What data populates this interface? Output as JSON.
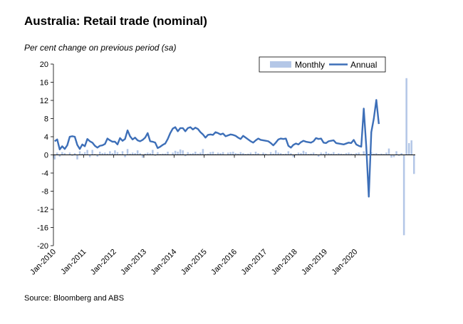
{
  "header": {
    "title": "Australia: Retail trade (nominal)",
    "subtitle": "Per cent change on previous period (sa)",
    "source": "Source: Bloomberg and ABS"
  },
  "colors": {
    "monthly": "#b4c7e7",
    "annual": "#3d6fb8"
  },
  "chart_data": {
    "type": "bar+line",
    "ylim": [
      -20,
      20
    ],
    "yticks": [
      -20,
      -16,
      -12,
      -8,
      -4,
      0,
      4,
      8,
      12,
      16,
      20
    ],
    "xticks": [
      "Jan-2010",
      "Jan-2011",
      "Jan-2012",
      "Jan-2013",
      "Jan-2014",
      "Jan-2015",
      "Jan-2016",
      "Jan-2017",
      "Jan-2018",
      "Jan-2019",
      "Jan-2020"
    ],
    "legend": {
      "position": "top-right",
      "entries": [
        "Monthly",
        "Annual"
      ]
    },
    "grid": false,
    "series": [
      {
        "name": "Monthly",
        "kind": "bar",
        "values": [
          -1.0,
          0.5,
          -0.4,
          0.6,
          0.4,
          0.1,
          0.5,
          -0.2,
          0.4,
          -1.0,
          0.8,
          0.3,
          0.6,
          1.1,
          -0.5,
          1.1,
          0.2,
          -0.4,
          0.7,
          0.4,
          0.5,
          0.3,
          0.8,
          0.4,
          1.0,
          0.6,
          0.2,
          0.8,
          -0.5,
          1.3,
          0.3,
          0.5,
          0.4,
          1.0,
          0.4,
          -0.6,
          0.3,
          0.5,
          0.4,
          1.1,
          -0.2,
          0.6,
          0.2,
          0.3,
          0.3,
          0.7,
          0.1,
          0.5,
          0.9,
          0.7,
          1.2,
          1.0,
          -0.3,
          0.6,
          0.3,
          0.4,
          0.7,
          0.3,
          0.5,
          1.3,
          0.2,
          0.3,
          0.6,
          0.7,
          0.2,
          0.5,
          0.4,
          0.6,
          0.1,
          0.5,
          0.6,
          0.7,
          0.4,
          0.3,
          0.6,
          0.4,
          0.2,
          0.3,
          0.5,
          0.2,
          0.7,
          0.4,
          0.1,
          0.5,
          0.3,
          -0.1,
          0.6,
          0.3,
          1.0,
          0.5,
          0.4,
          0.2,
          0.3,
          0.8,
          0.4,
          -0.5,
          0.2,
          0.5,
          0.4,
          0.9,
          0.6,
          0.2,
          0.3,
          0.5,
          0.2,
          -0.4,
          0.5,
          0.3,
          0.7,
          0.4,
          0.3,
          0.6,
          0.2,
          0.4,
          0.3,
          0.2,
          0.4,
          0.5,
          0.3,
          0.2,
          0.4,
          0.5,
          0.1,
          0.8,
          0.3,
          0.2,
          0.6,
          0.3,
          0.4,
          0.2,
          0.3,
          0.2,
          0.5,
          1.4,
          -0.6,
          -0.5,
          0.8,
          -0.2,
          0.4,
          -17.7,
          16.9,
          2.6,
          3.2,
          -4.2
        ]
      },
      {
        "name": "Annual",
        "kind": "line",
        "values": [
          3.0,
          3.4,
          1.2,
          1.9,
          1.3,
          2.1,
          4.0,
          4.1,
          4.0,
          2.2,
          1.3,
          2.3,
          1.9,
          3.5,
          3.0,
          2.7,
          2.0,
          1.6,
          2.0,
          2.1,
          2.4,
          3.6,
          3.2,
          2.9,
          2.9,
          2.3,
          3.7,
          3.1,
          3.5,
          5.4,
          4.1,
          3.4,
          3.8,
          3.2,
          3.0,
          3.3,
          3.8,
          4.8,
          3.0,
          2.9,
          2.7,
          1.5,
          1.8,
          2.2,
          2.5,
          3.5,
          4.8,
          5.8,
          6.1,
          5.2,
          5.9,
          5.9,
          5.2,
          5.9,
          6.1,
          5.6,
          6.0,
          5.7,
          5.0,
          4.5,
          3.8,
          4.4,
          4.5,
          4.4,
          5.0,
          4.8,
          4.5,
          4.7,
          4.1,
          4.3,
          4.5,
          4.4,
          4.2,
          3.8,
          3.5,
          4.2,
          3.8,
          3.4,
          3.0,
          2.7,
          3.2,
          3.6,
          3.3,
          3.2,
          3.1,
          3.0,
          2.6,
          2.1,
          2.7,
          3.4,
          3.6,
          3.5,
          3.6,
          2.0,
          1.6,
          2.2,
          2.5,
          2.3,
          2.8,
          3.1,
          2.9,
          2.8,
          2.7,
          3.0,
          3.7,
          3.5,
          3.6,
          2.7,
          2.6,
          3.0,
          3.1,
          3.2,
          2.6,
          2.5,
          2.4,
          2.3,
          2.5,
          2.7,
          2.6,
          3.3,
          2.3,
          2.0,
          1.8,
          10.2,
          1.8,
          -9.2,
          5.0,
          8.0,
          12.1,
          6.8
        ]
      }
    ]
  }
}
